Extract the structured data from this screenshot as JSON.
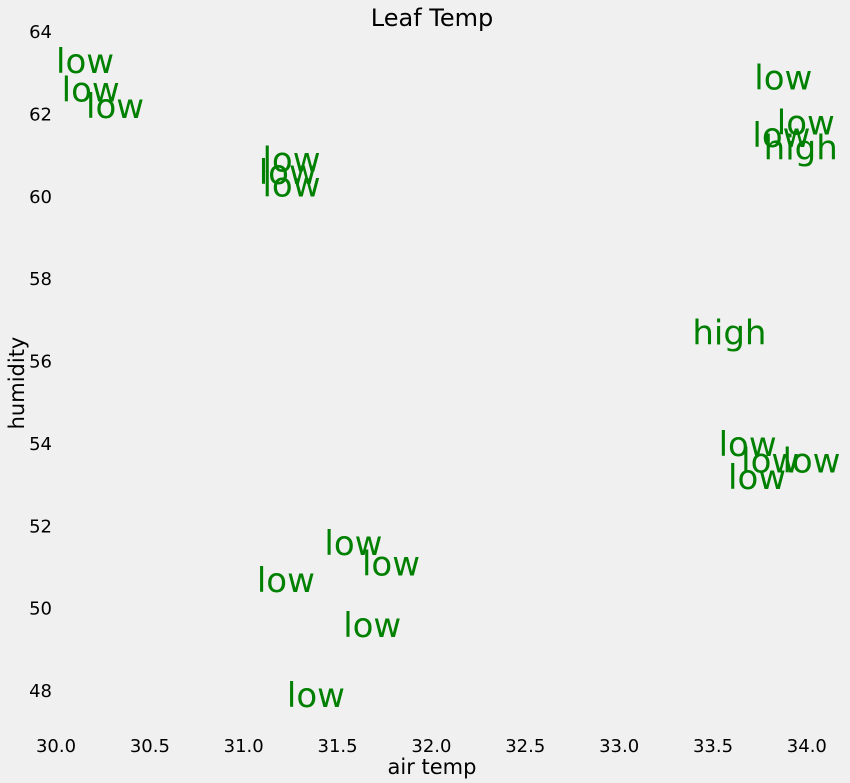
{
  "chart_data": {
    "type": "scatter",
    "title": "Leaf Temp",
    "xlabel": "air temp",
    "ylabel": "humidity",
    "xlim": [
      30.0,
      34.15
    ],
    "ylim": [
      47.2,
      64.0
    ],
    "xticks": [
      30.0,
      30.5,
      31.0,
      31.5,
      32.0,
      32.5,
      33.0,
      33.5,
      34.0
    ],
    "xtick_labels": [
      "30.0",
      "30.5",
      "31.0",
      "31.5",
      "32.0",
      "32.5",
      "33.0",
      "33.5",
      "34.0"
    ],
    "yticks": [
      48,
      50,
      52,
      54,
      56,
      58,
      60,
      62,
      64
    ],
    "ytick_labels": [
      "48",
      "50",
      "52",
      "54",
      "56",
      "58",
      "60",
      "62",
      "64"
    ],
    "grid": false,
    "label_color": "#008000",
    "points": [
      {
        "x": 30.0,
        "y": 63.3,
        "label": "low"
      },
      {
        "x": 30.03,
        "y": 62.6,
        "label": "low"
      },
      {
        "x": 30.16,
        "y": 62.2,
        "label": "low"
      },
      {
        "x": 31.1,
        "y": 60.9,
        "label": "low"
      },
      {
        "x": 31.08,
        "y": 60.6,
        "label": "low"
      },
      {
        "x": 31.1,
        "y": 60.3,
        "label": "low"
      },
      {
        "x": 33.72,
        "y": 62.9,
        "label": "low"
      },
      {
        "x": 33.84,
        "y": 61.8,
        "label": "low"
      },
      {
        "x": 33.71,
        "y": 61.5,
        "label": "low"
      },
      {
        "x": 33.77,
        "y": 61.2,
        "label": "high"
      },
      {
        "x": 33.39,
        "y": 56.7,
        "label": "high"
      },
      {
        "x": 33.53,
        "y": 54.0,
        "label": "low"
      },
      {
        "x": 33.65,
        "y": 53.6,
        "label": "low"
      },
      {
        "x": 33.87,
        "y": 53.6,
        "label": "low"
      },
      {
        "x": 33.58,
        "y": 53.2,
        "label": "low"
      },
      {
        "x": 31.43,
        "y": 51.6,
        "label": "low"
      },
      {
        "x": 31.63,
        "y": 51.1,
        "label": "low"
      },
      {
        "x": 31.07,
        "y": 50.7,
        "label": "low"
      },
      {
        "x": 31.53,
        "y": 49.6,
        "label": "low"
      },
      {
        "x": 31.23,
        "y": 47.9,
        "label": "low"
      }
    ]
  }
}
